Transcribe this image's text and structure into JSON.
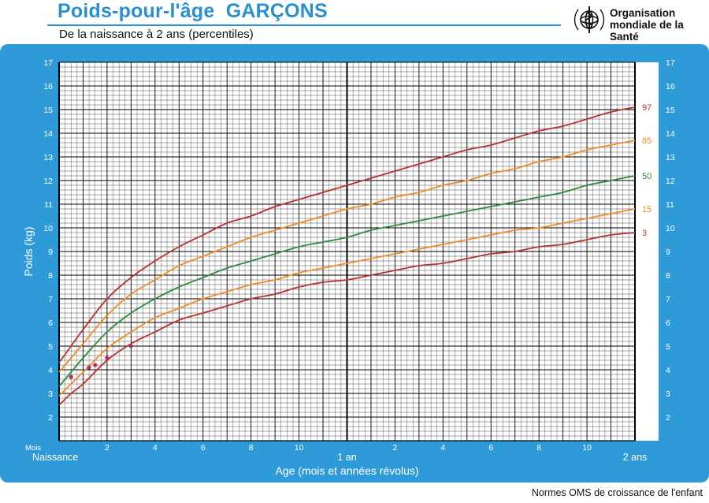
{
  "header": {
    "title": "Poids-pour-l'âge  GARÇONS",
    "subtitle": "De la naissance à 2 ans (percentiles)",
    "org_line1": "Organisation",
    "org_line2": "mondiale de la Santé",
    "logo_icon": "who-emblem-icon"
  },
  "footer": {
    "text": "Normes OMS de croissance de l'enfant"
  },
  "colors": {
    "panel": "#2e9ad8",
    "title": "#2a8fd0",
    "p3_p97": "#b7302e",
    "p15_p85": "#f08a24",
    "p50": "#2e8b3a",
    "points": "#b03060"
  },
  "chart_data": {
    "type": "line",
    "title": "Poids-pour-l'âge  GARÇONS",
    "subtitle": "De la naissance à 2 ans (percentiles)",
    "xlabel": "Age (mois et années révolus)",
    "ylabel": "Poids (kg)",
    "xlim": [
      0,
      24
    ],
    "ylim": [
      1,
      17
    ],
    "y_ticks": [
      2,
      3,
      4,
      5,
      6,
      7,
      8,
      9,
      10,
      11,
      12,
      13,
      14,
      15,
      16,
      17
    ],
    "x_month_ticks": [
      "2",
      "4",
      "6",
      "8",
      "10",
      "2",
      "4",
      "6",
      "8",
      "10"
    ],
    "x_unit_label": "Mois",
    "x_major_labels": [
      "Naissance",
      "1 an",
      "2 ans"
    ],
    "grid": true,
    "x": [
      0,
      0.5,
      1,
      2,
      3,
      4,
      5,
      6,
      7,
      8,
      9,
      10,
      11,
      12,
      13,
      14,
      15,
      16,
      17,
      18,
      19,
      20,
      21,
      22,
      23,
      24
    ],
    "series": [
      {
        "name": "3",
        "color": "#b7302e",
        "values": [
          2.5,
          3.0,
          3.4,
          4.4,
          5.1,
          5.6,
          6.1,
          6.4,
          6.7,
          7.0,
          7.2,
          7.5,
          7.7,
          7.8,
          8.0,
          8.2,
          8.4,
          8.5,
          8.7,
          8.9,
          9.0,
          9.2,
          9.3,
          9.5,
          9.7,
          9.8
        ]
      },
      {
        "name": "15",
        "color": "#f08a24",
        "values": [
          2.9,
          3.4,
          3.9,
          4.9,
          5.6,
          6.2,
          6.6,
          7.0,
          7.3,
          7.6,
          7.8,
          8.1,
          8.3,
          8.5,
          8.7,
          8.9,
          9.1,
          9.3,
          9.5,
          9.7,
          9.9,
          10.0,
          10.2,
          10.4,
          10.6,
          10.8
        ]
      },
      {
        "name": "50",
        "color": "#2e8b3a",
        "values": [
          3.3,
          3.9,
          4.5,
          5.6,
          6.4,
          7.0,
          7.5,
          7.9,
          8.3,
          8.6,
          8.9,
          9.2,
          9.4,
          9.6,
          9.9,
          10.1,
          10.3,
          10.5,
          10.7,
          10.9,
          11.1,
          11.3,
          11.5,
          11.8,
          12.0,
          12.2
        ]
      },
      {
        "name": "85",
        "color": "#f08a24",
        "values": [
          3.9,
          4.5,
          5.1,
          6.3,
          7.2,
          7.8,
          8.4,
          8.8,
          9.2,
          9.6,
          9.9,
          10.2,
          10.5,
          10.8,
          11.0,
          11.3,
          11.5,
          11.8,
          12.0,
          12.3,
          12.5,
          12.8,
          13.0,
          13.3,
          13.5,
          13.7
        ]
      },
      {
        "name": "97",
        "color": "#b7302e",
        "values": [
          4.3,
          5.0,
          5.7,
          7.0,
          7.9,
          8.6,
          9.2,
          9.7,
          10.2,
          10.5,
          10.9,
          11.2,
          11.5,
          11.8,
          12.1,
          12.4,
          12.7,
          13.0,
          13.3,
          13.5,
          13.8,
          14.1,
          14.3,
          14.6,
          14.9,
          15.1
        ]
      }
    ],
    "points": [
      {
        "x": 0.5,
        "y": 3.7
      },
      {
        "x": 1.25,
        "y": 4.1
      },
      {
        "x": 1.5,
        "y": 4.2
      },
      {
        "x": 2.0,
        "y": 4.5
      },
      {
        "x": 3.0,
        "y": 5.0
      }
    ]
  }
}
